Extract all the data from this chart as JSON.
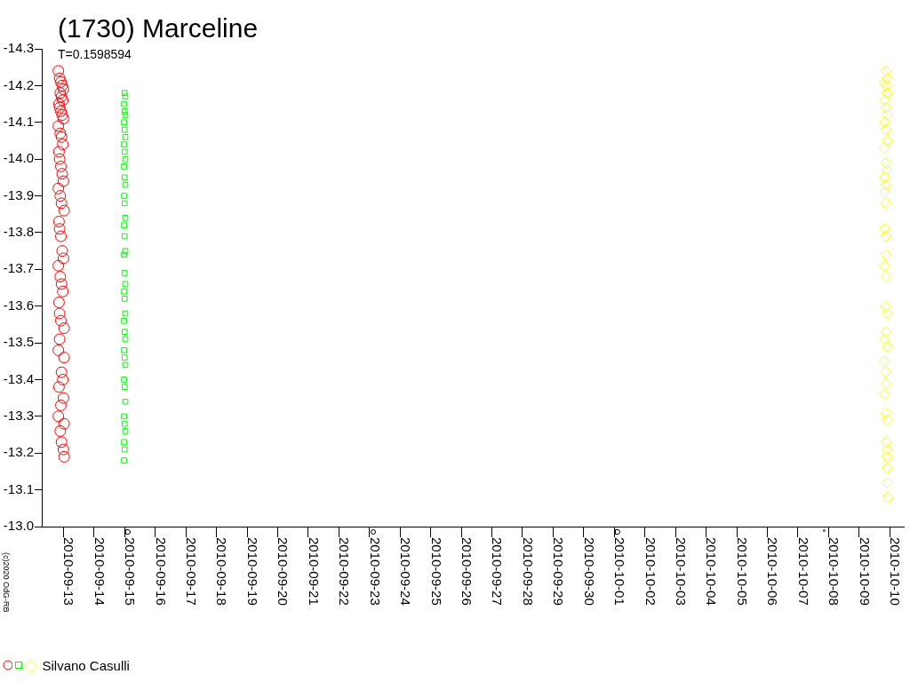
{
  "chart_data": {
    "type": "scatter",
    "title": "(1730) Marceline",
    "subtitle": "T=0.1598594",
    "legend": "bottom left",
    "annotations": [
      "(c)2020 OdG-RB"
    ],
    "xlim": [
      "2010-09-12T07:00",
      "2010-10-10T11:00"
    ],
    "xticks": [
      "2010-09-13",
      "2010-09-14",
      "2010-09-15",
      "2010-09-16",
      "2010-09-17",
      "2010-09-18",
      "2010-09-19",
      "2010-09-20",
      "2010-09-21",
      "2010-09-22",
      "2010-09-23",
      "2010-09-24",
      "2010-09-25",
      "2010-09-26",
      "2010-09-27",
      "2010-09-28",
      "2010-09-29",
      "2010-09-30",
      "2010-10-01",
      "2010-10-02",
      "2010-10-03",
      "2010-10-04",
      "2010-10-05",
      "2010-10-06",
      "2010-10-07",
      "2010-10-08",
      "2010-10-09",
      "2010-10-10"
    ],
    "ylim": [
      -13.0,
      -14.3
    ],
    "yticks": [
      {
        "value": -14.3,
        "label": "-14.3"
      },
      {
        "value": -14.2,
        "label": "-14.2"
      },
      {
        "value": -14.1,
        "label": "-14.1"
      },
      {
        "value": -14.0,
        "label": "-14.0"
      },
      {
        "value": -13.9,
        "label": "-13.9"
      },
      {
        "value": -13.8,
        "label": "-13.8"
      },
      {
        "value": -13.7,
        "label": "-13.7"
      },
      {
        "value": -13.6,
        "label": "-13.6"
      },
      {
        "value": -13.5,
        "label": "-13.5"
      },
      {
        "value": -13.4,
        "label": "-13.4"
      },
      {
        "value": -13.3,
        "label": "-13.3"
      },
      {
        "value": -13.2,
        "label": "-13.2"
      },
      {
        "value": -13.1,
        "label": "-13.1"
      },
      {
        "value": -13.0,
        "label": "-13.0"
      }
    ],
    "grid": false,
    "series": [
      {
        "color": "#ff0000",
        "marker": "circle",
        "x": [
          "2010-09-12T20:00",
          "2010-09-12T21:00",
          "2010-09-12T22:00",
          "2010-09-12T23:00",
          "2010-09-13T00:00",
          "2010-09-12T21:30",
          "2010-09-12T22:30",
          "2010-09-12T23:30",
          "2010-09-12T20:30",
          "2010-09-12T21:00",
          "2010-09-12T22:00",
          "2010-09-12T23:00",
          "2010-09-13T00:00",
          "2010-09-12T20:00",
          "2010-09-12T21:30",
          "2010-09-12T22:30",
          "2010-09-12T23:30",
          "2010-09-12T20:30",
          "2010-09-12T21:00",
          "2010-09-12T22:00",
          "2010-09-12T23:00",
          "2010-09-13T00:00",
          "2010-09-12T20:00",
          "2010-09-12T21:30",
          "2010-09-12T22:30",
          "2010-09-13T00:30",
          "2010-09-12T20:30",
          "2010-09-12T21:00",
          "2010-09-12T22:00",
          "2010-09-12T23:00",
          "2010-09-13T00:00",
          "2010-09-12T20:00",
          "2010-09-12T21:30",
          "2010-09-12T22:30",
          "2010-09-12T23:30",
          "2010-09-12T20:30",
          "2010-09-12T21:00",
          "2010-09-12T22:00",
          "2010-09-13T00:30",
          "2010-09-12T21:00",
          "2010-09-12T20:00",
          "2010-09-13T00:30",
          "2010-09-12T22:30",
          "2010-09-12T23:30",
          "2010-09-12T20:30",
          "2010-09-13T00:00",
          "2010-09-12T22:00",
          "2010-09-12T20:00",
          "2010-09-13T00:30",
          "2010-09-12T21:30",
          "2010-09-12T22:30",
          "2010-09-13T00:00",
          "2010-09-13T00:30"
        ],
        "values": [
          -14.24,
          -14.22,
          -14.21,
          -14.2,
          -14.19,
          -14.18,
          -14.17,
          -14.16,
          -14.15,
          -14.14,
          -14.13,
          -14.12,
          -14.11,
          -14.09,
          -14.07,
          -14.06,
          -14.04,
          -14.02,
          -14.0,
          -13.98,
          -13.96,
          -13.94,
          -13.92,
          -13.9,
          -13.88,
          -13.86,
          -13.83,
          -13.81,
          -13.79,
          -13.75,
          -13.73,
          -13.71,
          -13.68,
          -13.66,
          -13.64,
          -13.61,
          -13.58,
          -13.56,
          -13.54,
          -13.51,
          -13.48,
          -13.46,
          -13.42,
          -13.4,
          -13.38,
          -13.35,
          -13.33,
          -13.3,
          -13.28,
          -13.26,
          -13.23,
          -13.21,
          -13.19
        ]
      },
      {
        "color": "#00ff00",
        "marker": "square",
        "x": [
          "2010-09-15T00:00",
          "2010-09-15T00:30",
          "2010-09-14T23:30",
          "2010-09-15T00:00",
          "2010-09-15T00:30",
          "2010-09-14T23:30",
          "2010-09-15T00:00",
          "2010-09-15T00:30",
          "2010-09-14T23:30",
          "2010-09-15T00:00",
          "2010-09-15T00:30",
          "2010-09-14T23:30",
          "2010-09-15T00:00",
          "2010-09-15T00:30",
          "2010-09-14T23:30",
          "2010-09-15T00:00",
          "2010-09-15T00:30",
          "2010-09-14T23:30",
          "2010-09-15T00:00",
          "2010-09-15T00:30",
          "2010-09-14T23:30",
          "2010-09-15T00:00",
          "2010-09-15T00:30",
          "2010-09-14T23:30",
          "2010-09-15T00:00",
          "2010-09-15T00:30",
          "2010-09-14T23:30",
          "2010-09-15T00:00",
          "2010-09-15T00:30",
          "2010-09-14T23:30",
          "2010-09-15T00:00",
          "2010-09-15T00:30",
          "2010-09-14T23:30",
          "2010-09-15T00:00",
          "2010-09-15T00:30",
          "2010-09-14T23:30",
          "2010-09-15T00:00",
          "2010-09-15T00:30",
          "2010-09-14T23:30",
          "2010-09-15T00:00",
          "2010-09-14T23:30"
        ],
        "values": [
          -14.18,
          -14.17,
          -14.15,
          -14.13,
          -14.12,
          -14.1,
          -14.08,
          -14.06,
          -14.04,
          -14.02,
          -14.0,
          -13.98,
          -13.95,
          -13.93,
          -13.9,
          -13.88,
          -13.84,
          -13.82,
          -13.79,
          -13.75,
          -13.74,
          -13.69,
          -13.66,
          -13.64,
          -13.62,
          -13.58,
          -13.56,
          -13.53,
          -13.51,
          -13.48,
          -13.46,
          -13.44,
          -13.4,
          -13.38,
          -13.34,
          -13.3,
          -13.28,
          -13.26,
          -13.23,
          -13.21,
          -13.18
        ]
      },
      {
        "name": "Silvano Casulli",
        "color": "#ffff00",
        "marker": "diamond",
        "x": [
          "2010-10-09T21:00",
          "2010-10-09T22:00",
          "2010-10-09T20:00",
          "2010-10-09T21:00",
          "2010-10-09T22:00",
          "2010-10-09T20:00",
          "2010-10-09T21:00",
          "2010-10-09T22:00",
          "2010-10-09T20:00",
          "2010-10-09T21:00",
          "2010-10-09T22:00",
          "2010-10-09T20:00",
          "2010-10-09T21:00",
          "2010-10-09T22:00",
          "2010-10-09T20:00",
          "2010-10-09T21:00",
          "2010-10-09T20:00",
          "2010-10-09T21:00",
          "2010-10-09T20:00",
          "2010-10-09T21:00",
          "2010-10-09T21:00",
          "2010-10-09T20:00",
          "2010-10-09T21:00",
          "2010-10-09T21:00",
          "2010-10-09T22:00",
          "2010-10-09T21:00",
          "2010-10-09T20:00",
          "2010-10-09T22:00",
          "2010-10-09T20:00",
          "2010-10-09T21:00",
          "2010-10-09T21:00",
          "2010-10-09T20:00",
          "2010-10-09T21:00",
          "2010-10-09T22:00",
          "2010-10-09T21:00",
          "2010-10-09T22:00",
          "2010-10-09T22:00",
          "2010-10-09T22:00",
          "2010-10-09T22:00",
          "2010-10-09T22:30"
        ],
        "values": [
          -14.24,
          -14.22,
          -14.21,
          -14.2,
          -14.18,
          -14.16,
          -14.14,
          -14.12,
          -14.1,
          -14.08,
          -14.05,
          -14.03,
          -13.99,
          -13.97,
          -13.95,
          -13.93,
          -13.91,
          -13.88,
          -13.81,
          -13.79,
          -13.74,
          -13.71,
          -13.68,
          -13.6,
          -13.58,
          -13.53,
          -13.51,
          -13.49,
          -13.45,
          -13.42,
          -13.39,
          -13.36,
          -13.31,
          -13.29,
          -13.23,
          -13.21,
          -13.19,
          -13.16,
          -13.12,
          -13.08
        ]
      }
    ]
  }
}
